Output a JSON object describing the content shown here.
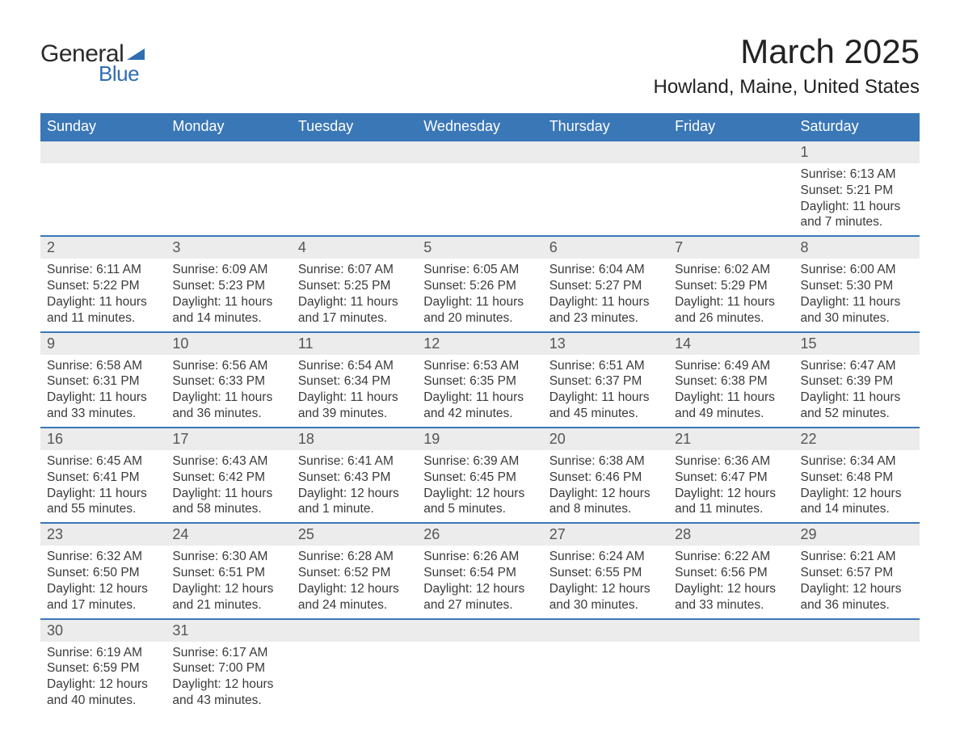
{
  "brand": {
    "general": "General",
    "blue": "Blue"
  },
  "title": "March 2025",
  "location": "Howland, Maine, United States",
  "colors": {
    "header_bg": "#3a77b7",
    "header_text": "#ffffff",
    "daynum_bg": "#ececec",
    "row_divider": "#3a77b7",
    "body_text": "#3a3a3a",
    "logo_blue": "#2f6eb1",
    "page_bg": "#ffffff"
  },
  "typography": {
    "title_fontsize": 42,
    "location_fontsize": 24,
    "header_fontsize": 18,
    "daynum_fontsize": 18,
    "body_fontsize": 15.5,
    "font_family": "Arial"
  },
  "weekdays": [
    "Sunday",
    "Monday",
    "Tuesday",
    "Wednesday",
    "Thursday",
    "Friday",
    "Saturday"
  ],
  "weeks": [
    [
      null,
      null,
      null,
      null,
      null,
      null,
      {
        "n": "1",
        "sr": "Sunrise: 6:13 AM",
        "ss": "Sunset: 5:21 PM",
        "dl": "Daylight: 11 hours and 7 minutes."
      }
    ],
    [
      {
        "n": "2",
        "sr": "Sunrise: 6:11 AM",
        "ss": "Sunset: 5:22 PM",
        "dl": "Daylight: 11 hours and 11 minutes."
      },
      {
        "n": "3",
        "sr": "Sunrise: 6:09 AM",
        "ss": "Sunset: 5:23 PM",
        "dl": "Daylight: 11 hours and 14 minutes."
      },
      {
        "n": "4",
        "sr": "Sunrise: 6:07 AM",
        "ss": "Sunset: 5:25 PM",
        "dl": "Daylight: 11 hours and 17 minutes."
      },
      {
        "n": "5",
        "sr": "Sunrise: 6:05 AM",
        "ss": "Sunset: 5:26 PM",
        "dl": "Daylight: 11 hours and 20 minutes."
      },
      {
        "n": "6",
        "sr": "Sunrise: 6:04 AM",
        "ss": "Sunset: 5:27 PM",
        "dl": "Daylight: 11 hours and 23 minutes."
      },
      {
        "n": "7",
        "sr": "Sunrise: 6:02 AM",
        "ss": "Sunset: 5:29 PM",
        "dl": "Daylight: 11 hours and 26 minutes."
      },
      {
        "n": "8",
        "sr": "Sunrise: 6:00 AM",
        "ss": "Sunset: 5:30 PM",
        "dl": "Daylight: 11 hours and 30 minutes."
      }
    ],
    [
      {
        "n": "9",
        "sr": "Sunrise: 6:58 AM",
        "ss": "Sunset: 6:31 PM",
        "dl": "Daylight: 11 hours and 33 minutes."
      },
      {
        "n": "10",
        "sr": "Sunrise: 6:56 AM",
        "ss": "Sunset: 6:33 PM",
        "dl": "Daylight: 11 hours and 36 minutes."
      },
      {
        "n": "11",
        "sr": "Sunrise: 6:54 AM",
        "ss": "Sunset: 6:34 PM",
        "dl": "Daylight: 11 hours and 39 minutes."
      },
      {
        "n": "12",
        "sr": "Sunrise: 6:53 AM",
        "ss": "Sunset: 6:35 PM",
        "dl": "Daylight: 11 hours and 42 minutes."
      },
      {
        "n": "13",
        "sr": "Sunrise: 6:51 AM",
        "ss": "Sunset: 6:37 PM",
        "dl": "Daylight: 11 hours and 45 minutes."
      },
      {
        "n": "14",
        "sr": "Sunrise: 6:49 AM",
        "ss": "Sunset: 6:38 PM",
        "dl": "Daylight: 11 hours and 49 minutes."
      },
      {
        "n": "15",
        "sr": "Sunrise: 6:47 AM",
        "ss": "Sunset: 6:39 PM",
        "dl": "Daylight: 11 hours and 52 minutes."
      }
    ],
    [
      {
        "n": "16",
        "sr": "Sunrise: 6:45 AM",
        "ss": "Sunset: 6:41 PM",
        "dl": "Daylight: 11 hours and 55 minutes."
      },
      {
        "n": "17",
        "sr": "Sunrise: 6:43 AM",
        "ss": "Sunset: 6:42 PM",
        "dl": "Daylight: 11 hours and 58 minutes."
      },
      {
        "n": "18",
        "sr": "Sunrise: 6:41 AM",
        "ss": "Sunset: 6:43 PM",
        "dl": "Daylight: 12 hours and 1 minute."
      },
      {
        "n": "19",
        "sr": "Sunrise: 6:39 AM",
        "ss": "Sunset: 6:45 PM",
        "dl": "Daylight: 12 hours and 5 minutes."
      },
      {
        "n": "20",
        "sr": "Sunrise: 6:38 AM",
        "ss": "Sunset: 6:46 PM",
        "dl": "Daylight: 12 hours and 8 minutes."
      },
      {
        "n": "21",
        "sr": "Sunrise: 6:36 AM",
        "ss": "Sunset: 6:47 PM",
        "dl": "Daylight: 12 hours and 11 minutes."
      },
      {
        "n": "22",
        "sr": "Sunrise: 6:34 AM",
        "ss": "Sunset: 6:48 PM",
        "dl": "Daylight: 12 hours and 14 minutes."
      }
    ],
    [
      {
        "n": "23",
        "sr": "Sunrise: 6:32 AM",
        "ss": "Sunset: 6:50 PM",
        "dl": "Daylight: 12 hours and 17 minutes."
      },
      {
        "n": "24",
        "sr": "Sunrise: 6:30 AM",
        "ss": "Sunset: 6:51 PM",
        "dl": "Daylight: 12 hours and 21 minutes."
      },
      {
        "n": "25",
        "sr": "Sunrise: 6:28 AM",
        "ss": "Sunset: 6:52 PM",
        "dl": "Daylight: 12 hours and 24 minutes."
      },
      {
        "n": "26",
        "sr": "Sunrise: 6:26 AM",
        "ss": "Sunset: 6:54 PM",
        "dl": "Daylight: 12 hours and 27 minutes."
      },
      {
        "n": "27",
        "sr": "Sunrise: 6:24 AM",
        "ss": "Sunset: 6:55 PM",
        "dl": "Daylight: 12 hours and 30 minutes."
      },
      {
        "n": "28",
        "sr": "Sunrise: 6:22 AM",
        "ss": "Sunset: 6:56 PM",
        "dl": "Daylight: 12 hours and 33 minutes."
      },
      {
        "n": "29",
        "sr": "Sunrise: 6:21 AM",
        "ss": "Sunset: 6:57 PM",
        "dl": "Daylight: 12 hours and 36 minutes."
      }
    ],
    [
      {
        "n": "30",
        "sr": "Sunrise: 6:19 AM",
        "ss": "Sunset: 6:59 PM",
        "dl": "Daylight: 12 hours and 40 minutes."
      },
      {
        "n": "31",
        "sr": "Sunrise: 6:17 AM",
        "ss": "Sunset: 7:00 PM",
        "dl": "Daylight: 12 hours and 43 minutes."
      },
      null,
      null,
      null,
      null,
      null
    ]
  ]
}
